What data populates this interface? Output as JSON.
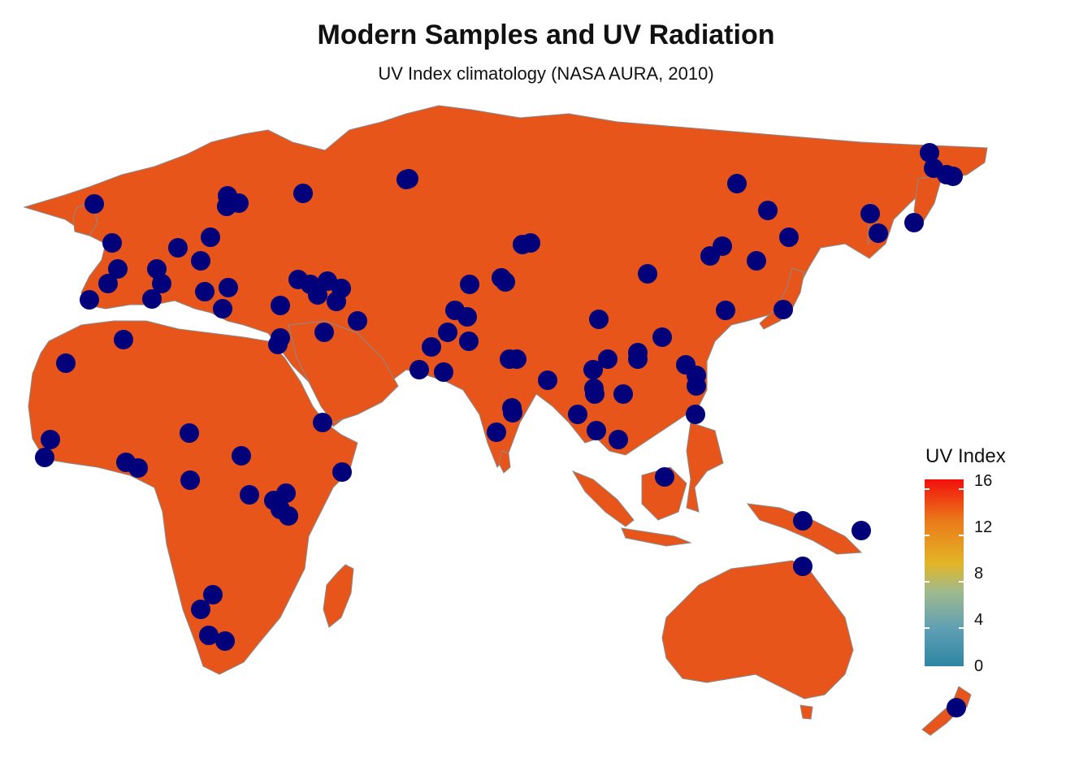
{
  "title": "Modern Samples and UV Radiation",
  "subtitle": "UV Index climatology (NASA AURA, 2010)",
  "colors": {
    "ocean": "#ffffff",
    "uv_low": "#2e86a3",
    "uv_mid": "#e3b526",
    "uv_high": "#f20f0c",
    "sample_point": "#00007a",
    "borders": "#8a8a8a"
  },
  "legend": {
    "title": "UV Index",
    "range": [
      0,
      16
    ],
    "ticks": [
      "16",
      "12",
      "8",
      "4",
      "0"
    ]
  },
  "samples": {
    "marker": "filled-circle",
    "count": 124,
    "regions": [
      "Europe",
      "Africa",
      "Middle East",
      "South Asia",
      "East Asia",
      "Siberia",
      "Southeast Asia",
      "Oceania"
    ]
  }
}
